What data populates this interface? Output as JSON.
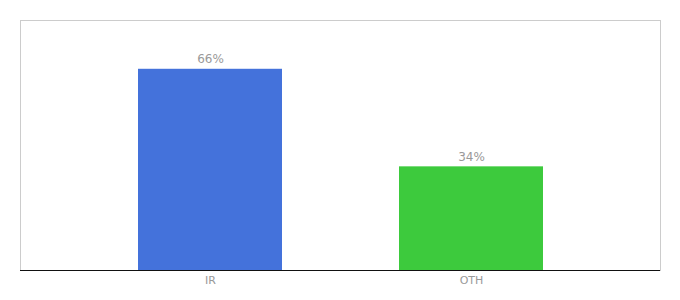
{
  "chart_data": {
    "type": "bar",
    "categories": [
      "IR",
      "OTH"
    ],
    "values": [
      66,
      34
    ],
    "value_labels": [
      "66%",
      "34%"
    ],
    "colors": [
      "#4472db",
      "#3dca3d"
    ],
    "ylim": [
      0,
      82
    ],
    "data_labels": true,
    "tick_labels": "x"
  }
}
